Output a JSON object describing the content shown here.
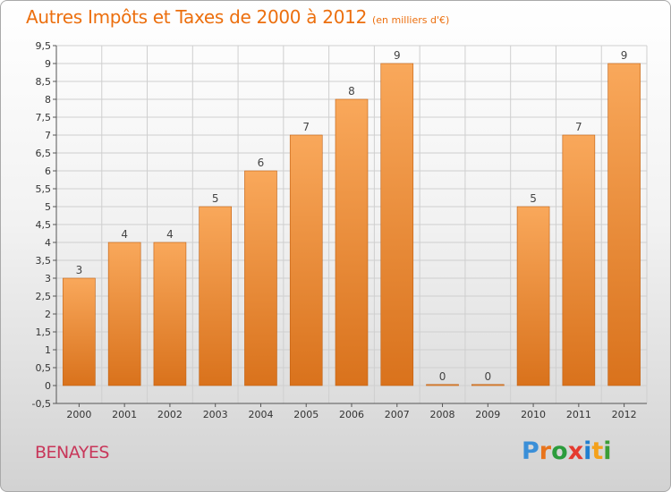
{
  "header": {
    "title": "Autres Impôts et Taxes de 2000 à 2012",
    "unit": "(en milliers d'€)"
  },
  "footer": {
    "commune": "BENAYES",
    "brand_letters": [
      "P",
      "r",
      "o",
      "x",
      "i",
      "t",
      "i"
    ],
    "brand_colors": [
      "#3a8fd8",
      "#e8741c",
      "#2c9c3c",
      "#e53a2f",
      "#1f7fd0",
      "#f4a11b",
      "#3a9d36"
    ]
  },
  "colors": {
    "bar_top": "#f9a85b",
    "bar_bottom": "#d9721c",
    "bar_side": "#c05f10",
    "grid": "#cfcfcf",
    "title": "#ec6f0e"
  },
  "chart_data": {
    "type": "bar",
    "title": "Autres Impôts et Taxes de 2000 à 2012",
    "subtitle": "(en milliers d'€)",
    "categories": [
      "2000",
      "2001",
      "2002",
      "2003",
      "2004",
      "2005",
      "2006",
      "2007",
      "2008",
      "2009",
      "2010",
      "2011",
      "2012"
    ],
    "values": [
      3,
      4,
      4,
      5,
      6,
      7,
      8,
      9,
      0,
      0,
      5,
      7,
      9
    ],
    "value_labels": [
      "3",
      "4",
      "4",
      "5",
      "6",
      "7",
      "8",
      "9",
      "0",
      "0",
      "5",
      "7",
      "9"
    ],
    "y_ticks": [
      "-0,5",
      "0",
      "0,5",
      "1",
      "1,5",
      "2",
      "2,5",
      "3",
      "3,5",
      "4",
      "4,5",
      "5",
      "5,5",
      "6",
      "6,5",
      "7",
      "7,5",
      "8",
      "8,5",
      "9",
      "9,5"
    ],
    "ylim": [
      -0.5,
      9.5
    ],
    "xlabel": "",
    "ylabel": "",
    "grid": true
  }
}
